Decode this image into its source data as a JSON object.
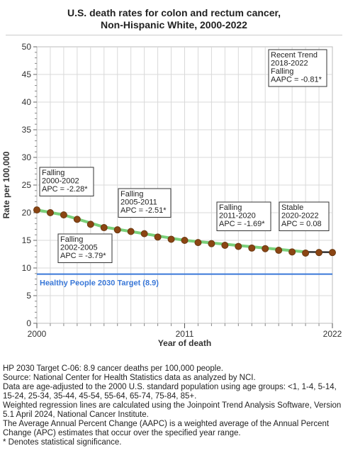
{
  "chart_data": {
    "type": "line",
    "title": "U.S. death rates for colon and rectum cancer,",
    "subtitle": "Non-Hispanic White,  2000-2022",
    "xlabel": "Year of death",
    "ylabel": "Rate per 100,000",
    "xlim": [
      2000,
      2022
    ],
    "ylim": [
      0,
      50
    ],
    "x_ticks": [
      "2000",
      "2011",
      "2022"
    ],
    "y_ticks": [
      "0",
      "5",
      "10",
      "15",
      "20",
      "25",
      "30",
      "35",
      "40",
      "45",
      "50"
    ],
    "grid": true,
    "series": [
      {
        "x": [
          2000,
          2001,
          2002,
          2003,
          2004,
          2005,
          2006,
          2007,
          2008,
          2009,
          2010,
          2011,
          2012,
          2013,
          2014,
          2015,
          2016,
          2017,
          2018,
          2019,
          2020,
          2021,
          2022
        ],
        "values": [
          20.5,
          20.0,
          19.6,
          18.8,
          17.9,
          17.3,
          16.9,
          16.6,
          16.2,
          15.6,
          15.2,
          15.0,
          14.6,
          14.4,
          14.1,
          13.9,
          13.6,
          13.5,
          13.2,
          12.9,
          12.7,
          12.8,
          12.8
        ]
      }
    ],
    "trend_segments": [
      {
        "x": [
          2000,
          2002
        ],
        "y": [
          20.5,
          19.6
        ]
      },
      {
        "x": [
          2002,
          2005
        ],
        "y": [
          19.6,
          17.4
        ]
      },
      {
        "x": [
          2005,
          2011
        ],
        "y": [
          17.4,
          15.0
        ]
      },
      {
        "x": [
          2011,
          2020
        ],
        "y": [
          15.0,
          12.9
        ]
      },
      {
        "x": [
          2020,
          2022
        ],
        "y": [
          12.9,
          12.85
        ]
      }
    ],
    "target": {
      "value": 8.9,
      "label": "Healthy People 2030 Target (8.9)"
    },
    "annotations": [
      {
        "lines": [
          "Recent Trend",
          "2018-2022",
          "Falling",
          "AAPC = -0.81*"
        ]
      },
      {
        "lines": [
          "Falling",
          "2000-2002",
          "APC = -2.28*"
        ]
      },
      {
        "lines": [
          "Falling",
          "2005-2011",
          "APC = -2.51*"
        ]
      },
      {
        "lines": [
          "Falling",
          "2011-2020",
          "APC = -1.69*"
        ]
      },
      {
        "lines": [
          "Stable",
          "2020-2022",
          "APC =  0.08"
        ]
      },
      {
        "lines": [
          "Falling",
          "2002-2005",
          "APC = -3.79*"
        ]
      }
    ]
  },
  "colors": {
    "marker_fill": "#8B4513",
    "marker_stroke": "#6a3a12",
    "trend_line": "#7ad07a",
    "recent_trend_line": "#333333",
    "target_line": "#3a78d8",
    "target_label": "#3a78d8",
    "grid": "#d9d9d9"
  },
  "footnotes": [
    "HP 2030 Target C-06: 8.9 cancer deaths per 100,000 people.",
    "Source: National Center for Health Statistics data as analyzed by NCI.",
    "Data are age-adjusted to the 2000 U.S. standard population using age groups: <1, 1-4, 5-14, 15-24, 25-34, 35-44, 45-54, 55-64, 65-74, 75-84, 85+.",
    "Weighted regression lines are calculated using the Joinpoint Trend Analysis Software, Version 5.1 April 2024, National Cancer Institute.",
    "The Average Annual Percent Change (AAPC) is a weighted average of the Annual Percent Change (APC) estimates that occur over the specified year range.",
    "* Denotes statistical significance."
  ]
}
